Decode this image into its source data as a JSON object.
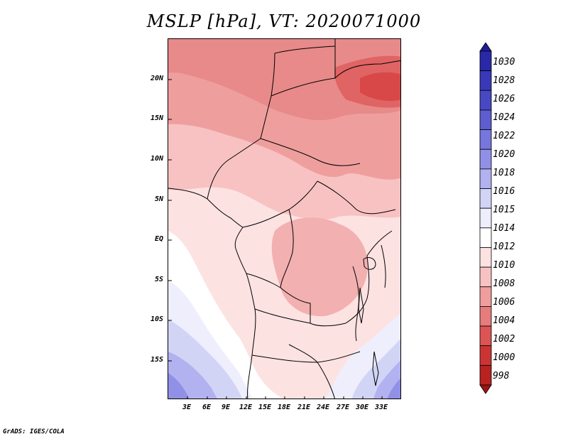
{
  "title": "MSLP [hPa], VT: 2020071000",
  "footer": "GrADS: IGES/COLA",
  "map": {
    "lon_range": [
      0,
      36
    ],
    "lat_range": [
      -19,
      24
    ],
    "lat_ticks": [
      "20N",
      "15N",
      "10N",
      "5N",
      "EQ",
      "5S",
      "10S",
      "15S"
    ],
    "lon_ticks": [
      "3E",
      "6E",
      "9E",
      "12E",
      "15E",
      "18E",
      "21E",
      "24E",
      "27E",
      "30E",
      "33E"
    ]
  },
  "colorbar": {
    "levels": [
      "1030",
      "1028",
      "1026",
      "1024",
      "1022",
      "1020",
      "1018",
      "1016",
      "1015",
      "1014",
      "1012",
      "1010",
      "1008",
      "1006",
      "1004",
      "1002",
      "1000",
      "998"
    ],
    "colors": [
      "#1e1e96",
      "#2828a8",
      "#3838b8",
      "#4848c4",
      "#5e5ed0",
      "#7676dc",
      "#9090e6",
      "#b2b2f0",
      "#d2d4f6",
      "#eeeefc",
      "#ffffff",
      "#fde2e2",
      "#f8c2c2",
      "#ef9e9e",
      "#e67c7c",
      "#dc5454",
      "#cc3434",
      "#b82222",
      "#9c1414"
    ]
  }
}
